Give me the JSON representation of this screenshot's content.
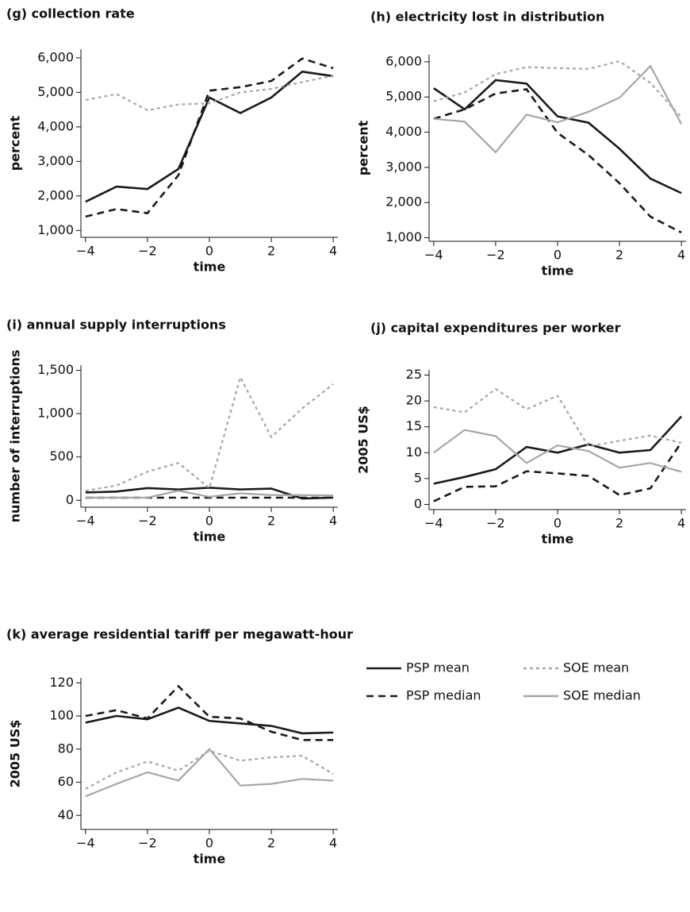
{
  "chart_data": [
    {
      "type": "line",
      "title": "(g) collection rate",
      "x_label": "time",
      "y_label": "percent",
      "x": [
        -4,
        -3,
        -2,
        -1,
        0,
        1,
        2,
        3,
        4
      ],
      "xlim": [
        -4.15,
        4.15
      ],
      "xticks": [
        {
          "value": -4,
          "label": "−4"
        },
        {
          "value": -2,
          "label": "−2"
        },
        0,
        2,
        4
      ],
      "ylim": [
        800,
        6250
      ],
      "yticks": [
        {
          "value": 1000,
          "label": "1,000"
        },
        {
          "value": 2000,
          "label": "2,000"
        },
        {
          "value": 3000,
          "label": "3,000"
        },
        {
          "value": 4000,
          "label": "4,000"
        },
        {
          "value": 5000,
          "label": "5,000"
        },
        {
          "value": 6000,
          "label": "6,000"
        }
      ],
      "series": [
        {
          "color": "#1a1a1a",
          "dash": "solid",
          "values": [
            1830,
            2270,
            2200,
            2780,
            4850,
            4400,
            4850,
            5600,
            5470
          ]
        },
        {
          "color": "#1a1a1a",
          "dash": "dashed",
          "values": [
            1400,
            1620,
            1500,
            2600,
            5050,
            5150,
            5330,
            5980,
            5700
          ]
        },
        {
          "color": "#a6a6a6",
          "dash": "dotted",
          "values": [
            4780,
            4950,
            4480,
            4650,
            4680,
            5000,
            5100,
            5300,
            5480
          ]
        }
      ]
    },
    {
      "type": "line",
      "title": "(h) electricity lost in distribution",
      "x_label": "time",
      "y_label": "percent",
      "x": [
        -4,
        -3,
        -2,
        -1,
        0,
        1,
        2,
        3,
        4
      ],
      "xlim": [
        -4.15,
        4.15
      ],
      "xticks": [
        {
          "value": -4,
          "label": "−4"
        },
        {
          "value": -2,
          "label": "−2"
        },
        0,
        2,
        4
      ],
      "ylim": [
        900,
        6200
      ],
      "yticks": [
        {
          "value": 1000,
          "label": "1,000"
        },
        {
          "value": 2000,
          "label": "2,000"
        },
        {
          "value": 3000,
          "label": "3,000"
        },
        {
          "value": 4000,
          "label": "4,000"
        },
        {
          "value": 5000,
          "label": "5,000"
        },
        {
          "value": 6000,
          "label": "6,000"
        }
      ],
      "series": [
        {
          "color": "#1a1a1a",
          "dash": "solid",
          "values": [
            5250,
            4650,
            5480,
            5380,
            4450,
            4270,
            3530,
            2680,
            2270
          ]
        },
        {
          "color": "#1a1a1a",
          "dash": "dashed",
          "values": [
            4380,
            4650,
            5100,
            5220,
            3980,
            3350,
            2550,
            1600,
            1150
          ]
        },
        {
          "color": "#a6a6a6",
          "dash": "dotted",
          "values": [
            4880,
            5130,
            5650,
            5850,
            5820,
            5800,
            6020,
            5400,
            4420
          ]
        },
        {
          "color": "#a6a6a6",
          "dash": "solid",
          "values": [
            4380,
            4300,
            3430,
            4500,
            4280,
            4580,
            4980,
            5880,
            4230
          ]
        }
      ]
    },
    {
      "type": "line",
      "title": "(i) annual supply interruptions",
      "x_label": "time",
      "y_label": "number of interruptions",
      "x": [
        -4,
        -3,
        -2,
        -1,
        0,
        1,
        2,
        3,
        4
      ],
      "xlim": [
        -4.15,
        4.15
      ],
      "xticks": [
        {
          "value": -4,
          "label": "−4"
        },
        {
          "value": -2,
          "label": "−2"
        },
        0,
        2,
        4
      ],
      "ylim": [
        -80,
        1560
      ],
      "yticks": [
        0,
        500,
        {
          "value": 1000,
          "label": "1,000"
        },
        {
          "value": 1500,
          "label": "1,500"
        }
      ],
      "series": [
        {
          "color": "#1a1a1a",
          "dash": "solid",
          "values": [
            90,
            100,
            140,
            125,
            145,
            125,
            135,
            20,
            30
          ]
        },
        {
          "color": "#1a1a1a",
          "dash": "dashed",
          "values": [
            30,
            30,
            30,
            30,
            30,
            30,
            30,
            30,
            30
          ]
        },
        {
          "color": "#a6a6a6",
          "dash": "dotted",
          "values": [
            110,
            170,
            330,
            430,
            140,
            1420,
            730,
            1060,
            1340
          ]
        },
        {
          "color": "#a6a6a6",
          "dash": "solid",
          "values": [
            30,
            30,
            30,
            110,
            40,
            80,
            60,
            60,
            55
          ]
        }
      ]
    },
    {
      "type": "line",
      "title": "(j) capital expenditures per worker",
      "x_label": "time",
      "y_label": "2005 US$",
      "x": [
        -4,
        -3,
        -2,
        -1,
        0,
        1,
        2,
        3,
        4
      ],
      "xlim": [
        -4.15,
        4.15
      ],
      "xticks": [
        {
          "value": -4,
          "label": "−4"
        },
        {
          "value": -2,
          "label": "−2"
        },
        0,
        2,
        4
      ],
      "ylim": [
        -1,
        26
      ],
      "yticks": [
        0,
        5,
        10,
        15,
        20,
        25
      ],
      "series": [
        {
          "color": "#1a1a1a",
          "dash": "solid",
          "values": [
            4,
            5.3,
            6.8,
            11.1,
            10,
            11.6,
            10,
            10.5,
            17
          ]
        },
        {
          "color": "#1a1a1a",
          "dash": "dashed",
          "values": [
            0.6,
            3.4,
            3.5,
            6.4,
            6,
            5.5,
            1.8,
            3.1,
            12
          ]
        },
        {
          "color": "#a6a6a6",
          "dash": "dotted",
          "values": [
            18.8,
            17.8,
            22.3,
            18.4,
            21,
            11.2,
            12.3,
            13.3,
            11.9
          ]
        },
        {
          "color": "#a6a6a6",
          "dash": "solid",
          "values": [
            10,
            14.4,
            13.2,
            8,
            11.4,
            10.3,
            7.1,
            8,
            6.3
          ]
        }
      ]
    },
    {
      "type": "line",
      "title": "(k) average residential tariff per megawatt-hour",
      "x_label": "time",
      "y_label": "2005 US$",
      "x": [
        -4,
        -3,
        -2,
        -1,
        0,
        1,
        2,
        3,
        4
      ],
      "xlim": [
        -4.15,
        4.15
      ],
      "xticks": [
        {
          "value": -4,
          "label": "−4"
        },
        {
          "value": -2,
          "label": "−2"
        },
        0,
        2,
        4
      ],
      "ylim": [
        31.5,
        123
      ],
      "yticks": [
        40,
        60,
        80,
        100,
        120
      ],
      "legend": "right",
      "series": [
        {
          "name": "PSP mean",
          "color": "#1a1a1a",
          "dash": "solid",
          "values": [
            96,
            100,
            98,
            105,
            97,
            95.5,
            94,
            89.5,
            90
          ]
        },
        {
          "name": "PSP median",
          "color": "#1a1a1a",
          "dash": "dashed",
          "values": [
            100,
            103.5,
            98.5,
            118,
            99.5,
            98.5,
            90.5,
            85.5,
            85.5
          ]
        },
        {
          "name": "SOE mean",
          "color": "#a6a6a6",
          "dash": "dotted",
          "values": [
            56,
            66,
            72.5,
            67,
            79,
            73,
            75,
            76,
            65
          ]
        },
        {
          "name": "SOE median",
          "color": "#a6a6a6",
          "dash": "solid",
          "values": [
            51.5,
            59,
            66,
            61,
            80,
            58,
            59,
            62,
            61
          ]
        }
      ]
    }
  ]
}
